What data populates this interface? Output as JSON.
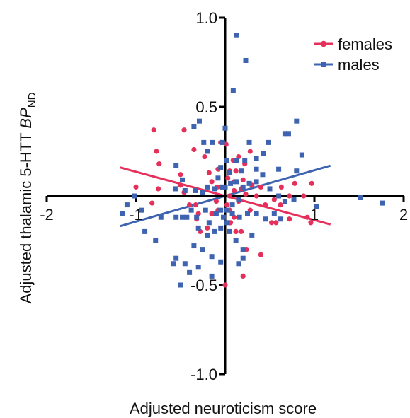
{
  "chart_data": {
    "type": "scatter",
    "xlabel": "Adjusted neuroticism score",
    "ylabel_main": "Adjusted thalamic 5-HTT ",
    "ylabel_italic": "BP",
    "ylabel_sub": "ND",
    "xlim": [
      -2,
      2
    ],
    "ylim": [
      -1.0,
      1.0
    ],
    "x_ticks": [
      {
        "value": -2,
        "label": "-2"
      },
      {
        "value": -1,
        "label": "-1"
      },
      {
        "value": 1,
        "label": "1"
      },
      {
        "value": 2,
        "label": "2"
      }
    ],
    "y_ticks": [
      {
        "value": 1.0,
        "label": "1.0"
      },
      {
        "value": 0.5,
        "label": "0.5"
      },
      {
        "value": -0.5,
        "label": "-0.5"
      },
      {
        "value": -1.0,
        "label": "-1.0"
      }
    ],
    "legend_position": "top-right",
    "series": [
      {
        "name": "females",
        "color": "#e4305a",
        "marker": "circle",
        "points": [
          [
            -1.0,
            0.05
          ],
          [
            -0.8,
            0.37
          ],
          [
            -0.77,
            0.25
          ],
          [
            -0.74,
            0.18
          ],
          [
            -0.75,
            0.04
          ],
          [
            -0.82,
            -0.04
          ],
          [
            -0.46,
            0.37
          ],
          [
            -0.35,
            0.26
          ],
          [
            -0.05,
            0.3
          ],
          [
            0.01,
            0.29
          ],
          [
            0.09,
            0.2
          ],
          [
            0.15,
            0.22
          ],
          [
            0.22,
            0.18
          ],
          [
            0.28,
            0.25
          ],
          [
            -0.23,
            0.22
          ],
          [
            -0.18,
            0.13
          ],
          [
            -0.15,
            0.08
          ],
          [
            -0.08,
            0.15
          ],
          [
            0.05,
            0.14
          ],
          [
            0.12,
            0.14
          ],
          [
            0.03,
            0.1
          ],
          [
            0.1,
            0.08
          ],
          [
            0.2,
            0.09
          ],
          [
            0.3,
            0.06
          ],
          [
            0.1,
            0.03
          ],
          [
            0.18,
            0.04
          ],
          [
            0.23,
            0.01
          ],
          [
            0.05,
            0.0
          ],
          [
            -0.09,
            0.05
          ],
          [
            -0.05,
            0.05
          ],
          [
            -0.5,
            0.06
          ],
          [
            -0.46,
            0.02
          ],
          [
            -0.4,
            -0.05
          ],
          [
            -0.33,
            -0.05
          ],
          [
            -0.3,
            -0.1
          ],
          [
            -0.28,
            -0.2
          ],
          [
            -0.32,
            -0.13
          ],
          [
            -0.2,
            -0.18
          ],
          [
            -0.15,
            -0.1
          ],
          [
            -0.12,
            -0.1
          ],
          [
            -0.08,
            -0.08
          ],
          [
            0.02,
            -0.05
          ],
          [
            0.05,
            -0.08
          ],
          [
            0.1,
            -0.12
          ],
          [
            0.06,
            -0.15
          ],
          [
            0.12,
            -0.2
          ],
          [
            0.18,
            -0.2
          ],
          [
            0.24,
            -0.3
          ],
          [
            0.4,
            -0.33
          ],
          [
            0.28,
            -0.08
          ],
          [
            0.35,
            -0.1
          ],
          [
            0.45,
            -0.05
          ],
          [
            0.55,
            -0.02
          ],
          [
            0.62,
            -0.05
          ],
          [
            0.72,
            0.0
          ],
          [
            0.78,
            0.07
          ],
          [
            0.88,
            0.0
          ],
          [
            0.97,
            0.07
          ],
          [
            0.92,
            -0.12
          ],
          [
            0.72,
            -0.13
          ],
          [
            0.57,
            -0.15
          ],
          [
            0.52,
            -0.15
          ],
          [
            0.2,
            -0.45
          ],
          [
            0.0,
            -0.5
          ],
          [
            -0.5,
            0.12
          ],
          [
            0.15,
            -0.03
          ],
          [
            0.35,
            0.0
          ],
          [
            0.4,
            0.05
          ],
          [
            0.63,
            0.05
          ],
          [
            0.96,
            -0.15
          ],
          [
            -0.1,
            -0.03
          ],
          [
            0.05,
            -0.15
          ]
        ]
      },
      {
        "name": "males",
        "color": "#3e63b0",
        "marker": "square",
        "points": [
          [
            0.13,
            0.9
          ],
          [
            0.23,
            0.76
          ],
          [
            0.09,
            0.59
          ],
          [
            0.8,
            0.42
          ],
          [
            0.67,
            0.35
          ],
          [
            0.71,
            0.35
          ],
          [
            -0.35,
            0.39
          ],
          [
            -0.29,
            0.42
          ],
          [
            0.0,
            0.38
          ],
          [
            0.48,
            0.3
          ],
          [
            0.86,
            0.23
          ],
          [
            -0.24,
            0.3
          ],
          [
            -0.2,
            0.25
          ],
          [
            -0.14,
            0.3
          ],
          [
            -0.03,
            0.3
          ],
          [
            0.27,
            0.3
          ],
          [
            0.35,
            0.21
          ],
          [
            0.43,
            0.24
          ],
          [
            0.02,
            0.2
          ],
          [
            0.13,
            0.2
          ],
          [
            0.22,
            0.2
          ],
          [
            -0.05,
            0.16
          ],
          [
            0.05,
            0.13
          ],
          [
            0.18,
            0.14
          ],
          [
            0.35,
            0.15
          ],
          [
            0.42,
            0.12
          ],
          [
            0.6,
            0.15
          ],
          [
            0.8,
            0.14
          ],
          [
            -0.55,
            0.17
          ],
          [
            -0.48,
            0.09
          ],
          [
            -0.56,
            0.04
          ],
          [
            -0.45,
            0.03
          ],
          [
            -0.33,
            0.03
          ],
          [
            -0.25,
            0.02
          ],
          [
            -0.2,
            0.05
          ],
          [
            -0.12,
            0.04
          ],
          [
            -0.03,
            0.05
          ],
          [
            0.0,
            0.05
          ],
          [
            0.06,
            0.07
          ],
          [
            0.13,
            0.08
          ],
          [
            0.2,
            0.05
          ],
          [
            0.27,
            0.07
          ],
          [
            0.35,
            0.08
          ],
          [
            0.5,
            0.04
          ],
          [
            0.6,
            0.0
          ],
          [
            0.67,
            -0.03
          ],
          [
            0.77,
            -0.02
          ],
          [
            1.02,
            -0.06
          ],
          [
            1.52,
            -0.01
          ],
          [
            1.76,
            -0.04
          ],
          [
            -1.1,
            -0.05
          ],
          [
            -1.02,
            0.0
          ],
          [
            -0.94,
            -0.08
          ],
          [
            -1.15,
            -0.1
          ],
          [
            -0.9,
            -0.2
          ],
          [
            -0.78,
            -0.25
          ],
          [
            -0.72,
            -0.12
          ],
          [
            -0.55,
            -0.12
          ],
          [
            -0.48,
            -0.12
          ],
          [
            -0.43,
            -0.12
          ],
          [
            -0.38,
            -0.08
          ],
          [
            -0.32,
            -0.12
          ],
          [
            -0.22,
            -0.08
          ],
          [
            -0.18,
            -0.15
          ],
          [
            -0.1,
            -0.1
          ],
          [
            -0.05,
            -0.08
          ],
          [
            0.02,
            -0.08
          ],
          [
            0.08,
            -0.1
          ],
          [
            0.16,
            -0.12
          ],
          [
            0.25,
            -0.1
          ],
          [
            0.35,
            -0.1
          ],
          [
            0.45,
            -0.13
          ],
          [
            0.55,
            -0.1
          ],
          [
            0.62,
            -0.13
          ],
          [
            -0.3,
            -0.18
          ],
          [
            -0.2,
            -0.22
          ],
          [
            -0.12,
            -0.2
          ],
          [
            -0.05,
            -0.18
          ],
          [
            0.05,
            -0.2
          ],
          [
            0.12,
            -0.25
          ],
          [
            0.2,
            -0.3
          ],
          [
            0.3,
            -0.22
          ],
          [
            -0.35,
            -0.28
          ],
          [
            -0.25,
            -0.3
          ],
          [
            -0.15,
            -0.34
          ],
          [
            -0.05,
            -0.37
          ],
          [
            0.15,
            -0.38
          ],
          [
            0.2,
            -0.35
          ],
          [
            -0.55,
            -0.35
          ],
          [
            -0.45,
            -0.38
          ],
          [
            -0.4,
            -0.43
          ],
          [
            -0.3,
            -0.4
          ],
          [
            -0.15,
            -0.45
          ],
          [
            -0.5,
            -0.5
          ],
          [
            -0.58,
            -0.38
          ],
          [
            0.02,
            -0.15
          ],
          [
            -0.02,
            -0.12
          ],
          [
            0.08,
            -0.05
          ],
          [
            0.15,
            -0.02
          ],
          [
            -0.08,
            0.1
          ]
        ]
      }
    ],
    "fit_lines": [
      {
        "name": "females",
        "color": "#e4305a",
        "x": [
          -1.18,
          1.18
        ],
        "y": [
          0.16,
          -0.16
        ]
      },
      {
        "name": "males",
        "color": "#3e63b0",
        "x": [
          -1.18,
          1.18
        ],
        "y": [
          -0.17,
          0.17
        ]
      }
    ]
  }
}
